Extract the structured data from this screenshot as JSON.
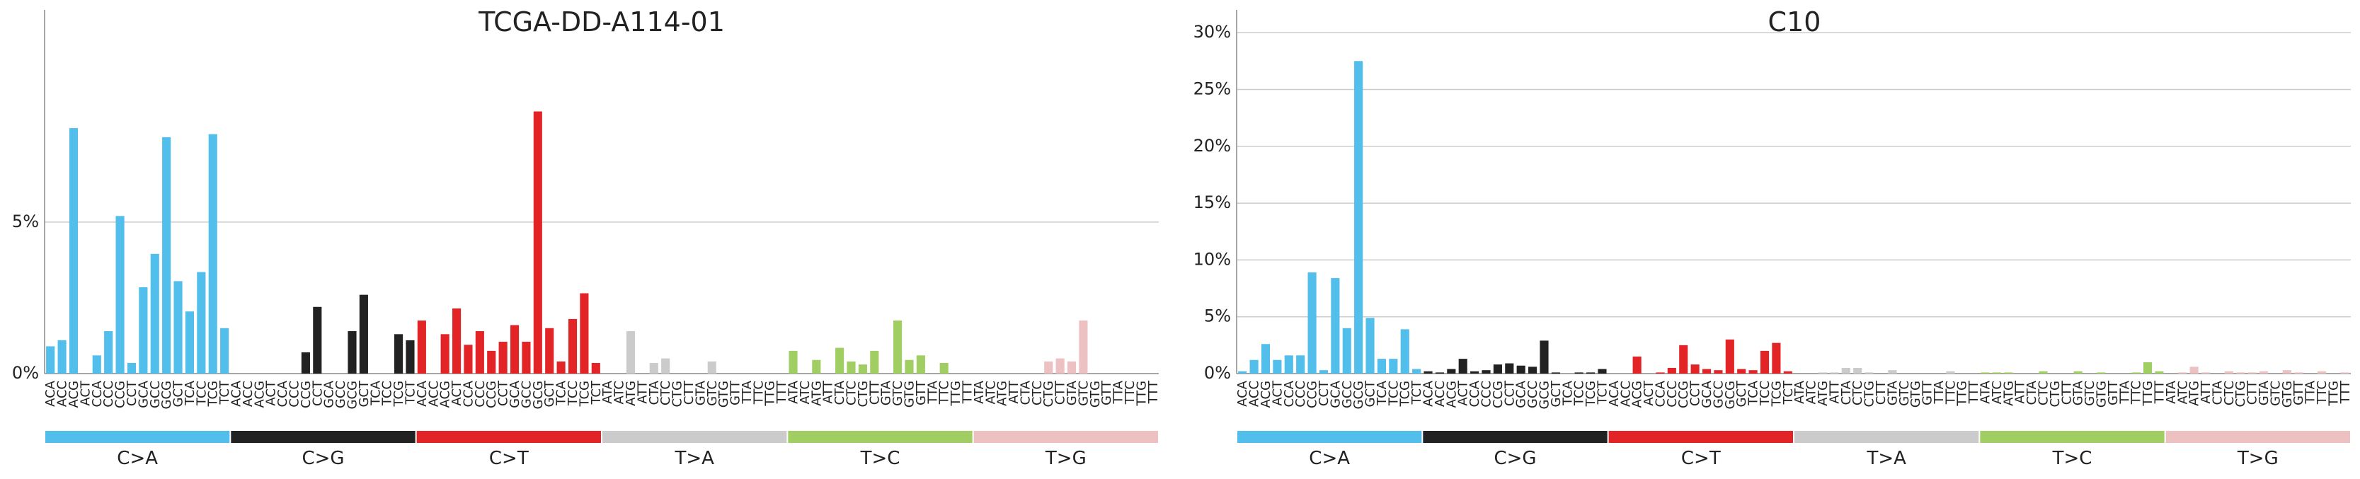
{
  "colors": {
    "C>A": "#52BEEB",
    "C>G": "#222222",
    "C>T": "#E32427",
    "T>A": "#CBCBCB",
    "T>C": "#A1CE63",
    "T>G": "#EDC0C2"
  },
  "chart_data": [
    {
      "type": "bar",
      "title": "TCGA-DD-A114-01",
      "ylim": [
        0,
        0.12
      ],
      "yticks": [
        0,
        0.05
      ],
      "ytick_labels": [
        "0%",
        "5%"
      ],
      "grid": true,
      "mutation_types": [
        "C>A",
        "C>G",
        "C>T",
        "T>A",
        "T>C",
        "T>G"
      ],
      "categories": [
        "ACA",
        "ACC",
        "ACG",
        "ACT",
        "CCA",
        "CCC",
        "CCG",
        "CCT",
        "GCA",
        "GCC",
        "GCG",
        "GCT",
        "TCA",
        "TCC",
        "TCG",
        "TCT",
        "ACA",
        "ACC",
        "ACG",
        "ACT",
        "CCA",
        "CCC",
        "CCG",
        "CCT",
        "GCA",
        "GCC",
        "GCG",
        "GCT",
        "TCA",
        "TCC",
        "TCG",
        "TCT",
        "ACA",
        "ACC",
        "ACG",
        "ACT",
        "CCA",
        "CCC",
        "CCG",
        "CCT",
        "GCA",
        "GCC",
        "GCG",
        "GCT",
        "TCA",
        "TCC",
        "TCG",
        "TCT",
        "ATA",
        "ATC",
        "ATG",
        "ATT",
        "CTA",
        "CTC",
        "CTG",
        "CTT",
        "GTA",
        "GTC",
        "GTG",
        "GTT",
        "TTA",
        "TTC",
        "TTG",
        "TTT",
        "ATA",
        "ATC",
        "ATG",
        "ATT",
        "CTA",
        "CTC",
        "CTG",
        "CTT",
        "GTA",
        "GTC",
        "GTG",
        "GTT",
        "TTA",
        "TTC",
        "TTG",
        "TTT",
        "ATA",
        "ATC",
        "ATG",
        "ATT",
        "CTA",
        "CTC",
        "CTG",
        "CTT",
        "GTA",
        "GTC",
        "GTG",
        "GTT",
        "TTA",
        "TTC",
        "TTG",
        "TTT"
      ],
      "values": [
        0.009,
        0.011,
        0.081,
        0,
        0.006,
        0.014,
        0.052,
        0.0035,
        0.0285,
        0.0395,
        0.078,
        0.0305,
        0.0205,
        0.0335,
        0.079,
        0.015,
        0,
        0,
        0,
        0,
        0,
        0,
        0.007,
        0.022,
        0,
        0,
        0.014,
        0.026,
        0,
        0,
        0.013,
        0.011,
        0.0175,
        0,
        0.013,
        0.0215,
        0.0095,
        0.014,
        0.0075,
        0.0105,
        0.016,
        0.0105,
        0.0865,
        0.015,
        0.004,
        0.018,
        0.0265,
        0.0035,
        0,
        0,
        0.014,
        0,
        0.0035,
        0.005,
        0,
        0,
        0,
        0.004,
        0,
        0,
        0,
        0,
        0,
        0,
        0.0075,
        0,
        0.0045,
        0,
        0.0085,
        0.004,
        0.003,
        0.0075,
        0,
        0.0175,
        0.0045,
        0.006,
        0,
        0.0035,
        0,
        0,
        0,
        0,
        0,
        0,
        0,
        0,
        0.004,
        0.005,
        0.004,
        0.0175,
        0,
        0,
        0,
        0,
        0,
        0
      ]
    },
    {
      "type": "bar",
      "title": "C10",
      "ylim": [
        0,
        0.32
      ],
      "yticks": [
        0,
        0.05,
        0.1,
        0.15,
        0.2,
        0.25,
        0.3
      ],
      "ytick_labels": [
        "0%",
        "5%",
        "10%",
        "15%",
        "20%",
        "25%",
        "30%"
      ],
      "grid": true,
      "mutation_types": [
        "C>A",
        "C>G",
        "C>T",
        "T>A",
        "T>C",
        "T>G"
      ],
      "categories": [
        "ACA",
        "ACC",
        "ACG",
        "ACT",
        "CCA",
        "CCC",
        "CCG",
        "CCT",
        "GCA",
        "GCC",
        "GCG",
        "GCT",
        "TCA",
        "TCC",
        "TCG",
        "TCT",
        "ACA",
        "ACC",
        "ACG",
        "ACT",
        "CCA",
        "CCC",
        "CCG",
        "CCT",
        "GCA",
        "GCC",
        "GCG",
        "GCT",
        "TCA",
        "TCC",
        "TCG",
        "TCT",
        "ACA",
        "ACC",
        "ACG",
        "ACT",
        "CCA",
        "CCC",
        "CCG",
        "CCT",
        "GCA",
        "GCC",
        "GCG",
        "GCT",
        "TCA",
        "TCC",
        "TCG",
        "TCT",
        "ATA",
        "ATC",
        "ATG",
        "ATT",
        "CTA",
        "CTC",
        "CTG",
        "CTT",
        "GTA",
        "GTC",
        "GTG",
        "GTT",
        "TTA",
        "TTC",
        "TTG",
        "TTT",
        "ATA",
        "ATC",
        "ATG",
        "ATT",
        "CTA",
        "CTC",
        "CTG",
        "CTT",
        "GTA",
        "GTC",
        "GTG",
        "GTT",
        "TTA",
        "TTC",
        "TTG",
        "TTT",
        "ATA",
        "ATC",
        "ATG",
        "ATT",
        "CTA",
        "CTC",
        "CTG",
        "CTT",
        "GTA",
        "GTC",
        "GTG",
        "GTT",
        "TTA",
        "TTC",
        "TTG",
        "TTT"
      ],
      "values": [
        0.002,
        0.012,
        0.026,
        0.012,
        0.016,
        0.016,
        0.089,
        0.003,
        0.084,
        0.04,
        0.275,
        0.049,
        0.013,
        0.013,
        0.039,
        0.004,
        0.002,
        0.001,
        0.004,
        0.013,
        0.002,
        0.003,
        0.008,
        0.009,
        0.007,
        0.006,
        0.029,
        0.001,
        0,
        0.001,
        0.001,
        0.004,
        0,
        0,
        0.015,
        0,
        0.001,
        0.005,
        0.025,
        0.008,
        0.004,
        0.003,
        0.03,
        0.004,
        0.003,
        0.02,
        0.027,
        0.002,
        0,
        0,
        0.001,
        0.001,
        0.005,
        0.005,
        0.001,
        0,
        0.003,
        0,
        0,
        0,
        0,
        0.002,
        0,
        0,
        0.001,
        0.001,
        0.001,
        0,
        0,
        0.002,
        0,
        0,
        0.002,
        0,
        0.001,
        0,
        0,
        0.001,
        0.01,
        0.002,
        0,
        0.001,
        0.006,
        0.001,
        0,
        0.002,
        0.001,
        0.001,
        0.002,
        0,
        0.003,
        0.001,
        0,
        0.002,
        0,
        0.001
      ]
    }
  ]
}
